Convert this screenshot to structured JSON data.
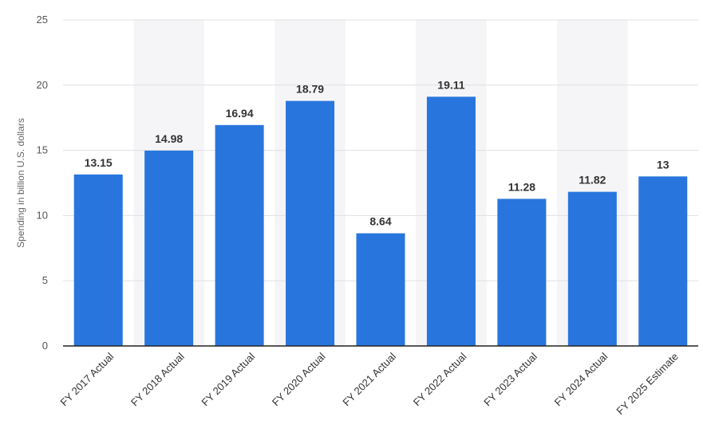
{
  "chart_data": {
    "type": "bar",
    "categories": [
      "FY 2017 Actual",
      "FY 2018 Actual",
      "FY 2019 Actual",
      "FY 2020 Actual",
      "FY 2021 Actual",
      "FY 2022 Actual",
      "FY 2023 Actual",
      "FY 2024 Actual",
      "FY 2025 Estimate"
    ],
    "values": [
      13.15,
      14.98,
      16.94,
      18.79,
      8.64,
      19.11,
      11.28,
      11.82,
      13
    ],
    "value_labels": [
      "13.15",
      "14.98",
      "16.94",
      "18.79",
      "8.64",
      "19.11",
      "11.28",
      "11.82",
      "13"
    ],
    "ylabel": "Spending in billion U.S. dollars",
    "xlabel": "",
    "ylim": [
      0,
      25
    ],
    "yticks": [
      "0",
      "5",
      "10",
      "15",
      "20",
      "25"
    ],
    "grid": true,
    "colors": {
      "bar": "#2876dd",
      "grid": "#e0e0e0",
      "band": "#f5f5f7",
      "axis": "#222222"
    }
  }
}
